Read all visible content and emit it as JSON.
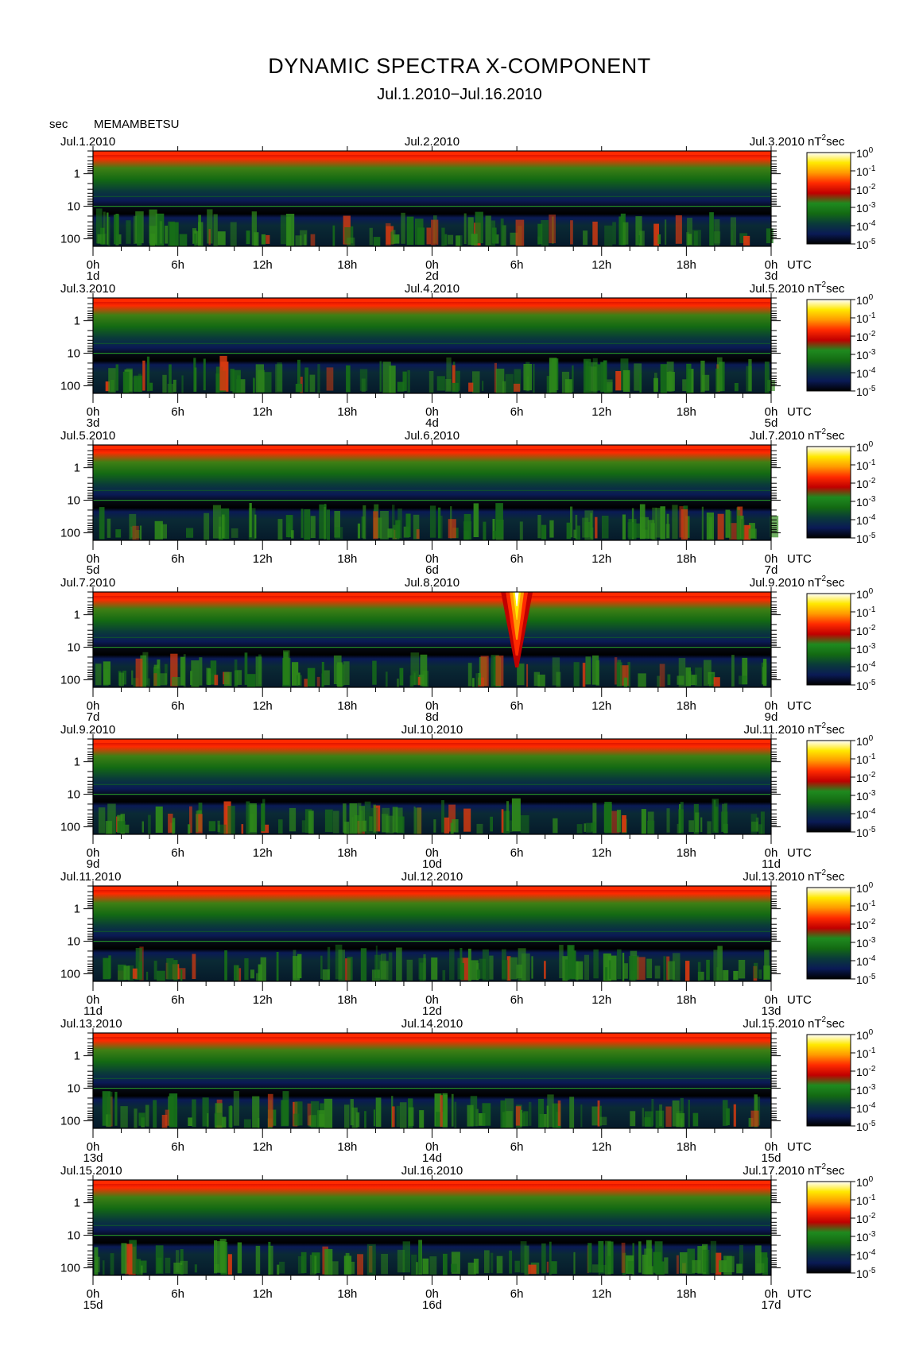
{
  "title": "DYNAMIC SPECTRA X-COMPONENT",
  "subtitle": "Jul.1.2010−Jul.16.2010",
  "station": "MEMAMBETSU",
  "yaxis_unit": "sec",
  "x_tick_labels": [
    "0h",
    "6h",
    "12h",
    "18h",
    "0h",
    "6h",
    "12h",
    "18h",
    "0h"
  ],
  "utc_label": "UTC",
  "colorbar": {
    "unit": "nT",
    "unit_exp": "2",
    "unit_suffix": "sec",
    "labels": [
      {
        "base": "10",
        "exp": "0"
      },
      {
        "base": "10",
        "exp": "-1"
      },
      {
        "base": "10",
        "exp": "-2"
      },
      {
        "base": "10",
        "exp": "-3"
      },
      {
        "base": "10",
        "exp": "-4"
      },
      {
        "base": "10",
        "exp": "-5"
      }
    ],
    "colors": [
      "#ffffff",
      "#ffe800",
      "#ff9a00",
      "#ff2a00",
      "#c00000",
      "#1f8a1f",
      "#136a13",
      "#0a3a3a",
      "#0a1a55",
      "#000000"
    ]
  },
  "chart_data": {
    "type": "heatmap",
    "title": "DYNAMIC SPECTRA X-COMPONENT",
    "subtitle": "Jul.1.2010−Jul.16.2010",
    "ylabel": "sec",
    "y_scale": "log",
    "y_ticks": [
      "1",
      "10",
      "100"
    ],
    "ylim_sec": [
      0.2,
      170
    ],
    "color_scale": "log",
    "color_range_nT2_sec": [
      1e-05,
      1
    ],
    "panels": [
      {
        "left_date": "Jul.1.2010",
        "mid_date": "Jul.2.2010",
        "right_date": "Jul.3.2010",
        "day_start": "1d",
        "day_mid": "2d",
        "day_end": "3d"
      },
      {
        "left_date": "Jul.3.2010",
        "mid_date": "Jul.4.2010",
        "right_date": "Jul.5.2010",
        "day_start": "3d",
        "day_mid": "4d",
        "day_end": "5d"
      },
      {
        "left_date": "Jul.5.2010",
        "mid_date": "Jul.6.2010",
        "right_date": "Jul.7.2010",
        "day_start": "5d",
        "day_mid": "6d",
        "day_end": "7d"
      },
      {
        "left_date": "Jul.7.2010",
        "mid_date": "Jul.8.2010",
        "right_date": "Jul.9.2010",
        "day_start": "7d",
        "day_mid": "8d",
        "day_end": "9d"
      },
      {
        "left_date": "Jul.9.2010",
        "mid_date": "Jul.10.2010",
        "right_date": "Jul.11.2010",
        "day_start": "9d",
        "day_mid": "10d",
        "day_end": "11d"
      },
      {
        "left_date": "Jul.11.2010",
        "mid_date": "Jul.12.2010",
        "right_date": "Jul.13.2010",
        "day_start": "11d",
        "day_mid": "12d",
        "day_end": "13d"
      },
      {
        "left_date": "Jul.13.2010",
        "mid_date": "Jul.14.2010",
        "right_date": "Jul.15.2010",
        "day_start": "13d",
        "day_mid": "14d",
        "day_end": "15d"
      },
      {
        "left_date": "Jul.15.2010",
        "mid_date": "Jul.16.2010",
        "right_date": "Jul.17.2010",
        "day_start": "15d",
        "day_mid": "16d",
        "day_end": "17d"
      }
    ]
  }
}
